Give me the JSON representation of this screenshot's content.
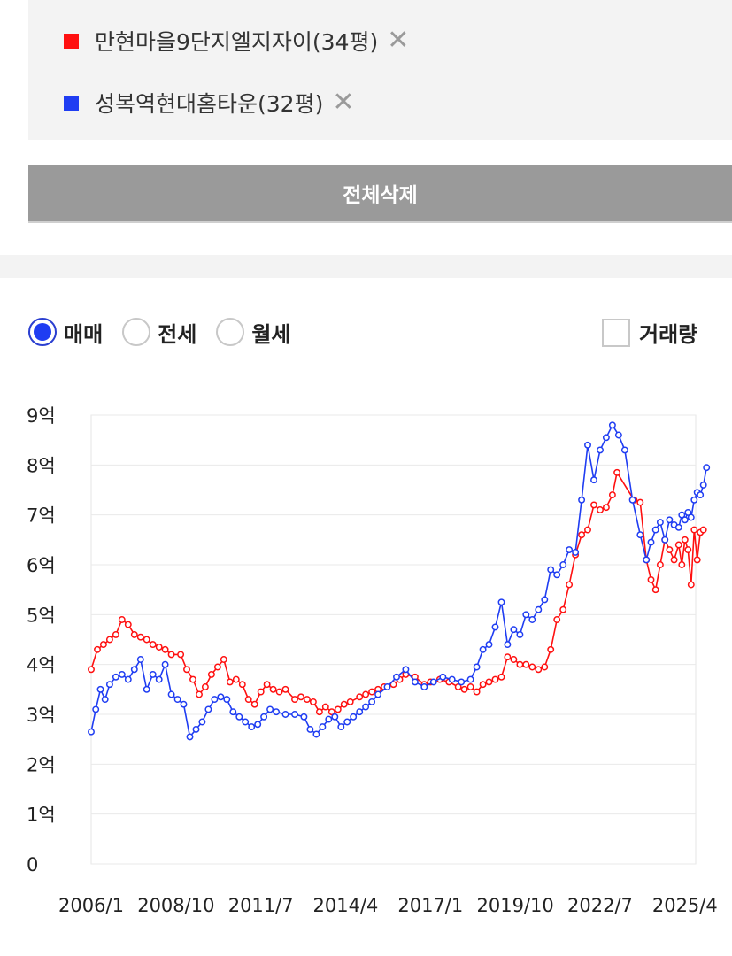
{
  "compare": {
    "items": [
      {
        "label": "만현마을9단지엘지자이(34평)",
        "color": "#ff1010",
        "close_icon": "close-icon"
      },
      {
        "label": "성복역현대홈타운(32평)",
        "color": "#1f3df2",
        "close_icon": "close-icon"
      }
    ],
    "clear_all_label": "전체삭제"
  },
  "filters": {
    "options": [
      {
        "label": "매매",
        "checked": true
      },
      {
        "label": "전세",
        "checked": false
      },
      {
        "label": "월세",
        "checked": false
      }
    ],
    "volume_label": "거래량",
    "volume_checked": false
  },
  "chart_data": {
    "type": "line",
    "x_unit": "year",
    "xlim": [
      2006.0,
      2025.6
    ],
    "ylim": [
      0,
      9
    ],
    "y_tick_values": [
      0,
      1,
      2,
      3,
      4,
      5,
      6,
      7,
      8,
      9
    ],
    "y_tick_labels": [
      "0",
      "1억",
      "2억",
      "3억",
      "4억",
      "5억",
      "6억",
      "7억",
      "8억",
      "9억"
    ],
    "x_tick_values": [
      2006.0,
      2008.75,
      2011.5,
      2014.25,
      2017.0,
      2019.75,
      2022.5,
      2025.25
    ],
    "x_tick_labels": [
      "2006/1",
      "2008/10",
      "2011/7",
      "2014/4",
      "2017/1",
      "2019/10",
      "2022/7",
      "2025/4"
    ],
    "grid": true,
    "series": [
      {
        "name": "만현마을9단지엘지자이(34평)",
        "color": "#ff1010",
        "points": [
          [
            2006.0,
            3.9
          ],
          [
            2006.2,
            4.3
          ],
          [
            2006.4,
            4.4
          ],
          [
            2006.6,
            4.5
          ],
          [
            2006.8,
            4.6
          ],
          [
            2007.0,
            4.9
          ],
          [
            2007.2,
            4.8
          ],
          [
            2007.4,
            4.6
          ],
          [
            2007.6,
            4.55
          ],
          [
            2007.8,
            4.5
          ],
          [
            2008.0,
            4.4
          ],
          [
            2008.2,
            4.35
          ],
          [
            2008.4,
            4.3
          ],
          [
            2008.6,
            4.2
          ],
          [
            2008.9,
            4.2
          ],
          [
            2009.1,
            3.9
          ],
          [
            2009.3,
            3.7
          ],
          [
            2009.5,
            3.4
          ],
          [
            2009.7,
            3.55
          ],
          [
            2009.9,
            3.8
          ],
          [
            2010.1,
            3.95
          ],
          [
            2010.3,
            4.1
          ],
          [
            2010.5,
            3.65
          ],
          [
            2010.7,
            3.7
          ],
          [
            2010.9,
            3.6
          ],
          [
            2011.1,
            3.3
          ],
          [
            2011.3,
            3.2
          ],
          [
            2011.5,
            3.45
          ],
          [
            2011.7,
            3.6
          ],
          [
            2011.9,
            3.5
          ],
          [
            2012.1,
            3.45
          ],
          [
            2012.3,
            3.5
          ],
          [
            2012.6,
            3.3
          ],
          [
            2012.8,
            3.35
          ],
          [
            2013.0,
            3.3
          ],
          [
            2013.2,
            3.25
          ],
          [
            2013.4,
            3.05
          ],
          [
            2013.6,
            3.15
          ],
          [
            2013.8,
            3.05
          ],
          [
            2014.0,
            3.1
          ],
          [
            2014.2,
            3.2
          ],
          [
            2014.4,
            3.25
          ],
          [
            2014.7,
            3.35
          ],
          [
            2014.9,
            3.4
          ],
          [
            2015.1,
            3.45
          ],
          [
            2015.3,
            3.5
          ],
          [
            2015.5,
            3.55
          ],
          [
            2015.8,
            3.6
          ],
          [
            2016.0,
            3.7
          ],
          [
            2016.2,
            3.8
          ],
          [
            2016.5,
            3.75
          ],
          [
            2016.8,
            3.6
          ],
          [
            2017.0,
            3.65
          ],
          [
            2017.3,
            3.7
          ],
          [
            2017.6,
            3.65
          ],
          [
            2017.9,
            3.55
          ],
          [
            2018.1,
            3.5
          ],
          [
            2018.3,
            3.55
          ],
          [
            2018.5,
            3.45
          ],
          [
            2018.7,
            3.6
          ],
          [
            2018.9,
            3.65
          ],
          [
            2019.1,
            3.7
          ],
          [
            2019.3,
            3.75
          ],
          [
            2019.5,
            4.15
          ],
          [
            2019.7,
            4.1
          ],
          [
            2019.9,
            4.0
          ],
          [
            2020.1,
            4.0
          ],
          [
            2020.3,
            3.95
          ],
          [
            2020.5,
            3.9
          ],
          [
            2020.7,
            3.95
          ],
          [
            2020.9,
            4.3
          ],
          [
            2021.1,
            4.9
          ],
          [
            2021.3,
            5.1
          ],
          [
            2021.5,
            5.6
          ],
          [
            2021.7,
            6.2
          ],
          [
            2021.9,
            6.6
          ],
          [
            2022.1,
            6.7
          ],
          [
            2022.3,
            7.2
          ],
          [
            2022.5,
            7.1
          ],
          [
            2022.7,
            7.15
          ],
          [
            2022.9,
            7.4
          ],
          [
            2023.05,
            7.85
          ],
          [
            2023.6,
            7.3
          ],
          [
            2023.8,
            7.25
          ],
          [
            2024.0,
            6.1
          ],
          [
            2024.15,
            5.7
          ],
          [
            2024.3,
            5.5
          ],
          [
            2024.45,
            6.0
          ],
          [
            2024.6,
            6.5
          ],
          [
            2024.75,
            6.3
          ],
          [
            2024.9,
            6.1
          ],
          [
            2025.05,
            6.4
          ],
          [
            2025.15,
            6.0
          ],
          [
            2025.25,
            6.5
          ],
          [
            2025.35,
            6.3
          ],
          [
            2025.45,
            5.6
          ],
          [
            2025.55,
            6.7
          ],
          [
            2025.65,
            6.1
          ],
          [
            2025.75,
            6.65
          ],
          [
            2025.85,
            6.7
          ]
        ]
      },
      {
        "name": "성복역현대홈타운(32평)",
        "color": "#1f3df2",
        "points": [
          [
            2006.0,
            2.65
          ],
          [
            2006.15,
            3.1
          ],
          [
            2006.3,
            3.5
          ],
          [
            2006.45,
            3.3
          ],
          [
            2006.6,
            3.6
          ],
          [
            2006.8,
            3.75
          ],
          [
            2007.0,
            3.8
          ],
          [
            2007.2,
            3.7
          ],
          [
            2007.4,
            3.9
          ],
          [
            2007.6,
            4.1
          ],
          [
            2007.8,
            3.5
          ],
          [
            2008.0,
            3.8
          ],
          [
            2008.2,
            3.7
          ],
          [
            2008.4,
            4.0
          ],
          [
            2008.6,
            3.4
          ],
          [
            2008.8,
            3.3
          ],
          [
            2009.0,
            3.2
          ],
          [
            2009.2,
            2.55
          ],
          [
            2009.4,
            2.7
          ],
          [
            2009.6,
            2.85
          ],
          [
            2009.8,
            3.1
          ],
          [
            2010.0,
            3.3
          ],
          [
            2010.2,
            3.35
          ],
          [
            2010.4,
            3.3
          ],
          [
            2010.6,
            3.05
          ],
          [
            2010.8,
            2.95
          ],
          [
            2011.0,
            2.85
          ],
          [
            2011.2,
            2.75
          ],
          [
            2011.4,
            2.8
          ],
          [
            2011.6,
            2.95
          ],
          [
            2011.8,
            3.1
          ],
          [
            2012.0,
            3.05
          ],
          [
            2012.3,
            3.0
          ],
          [
            2012.6,
            3.0
          ],
          [
            2012.9,
            2.95
          ],
          [
            2013.1,
            2.7
          ],
          [
            2013.3,
            2.6
          ],
          [
            2013.5,
            2.75
          ],
          [
            2013.7,
            2.9
          ],
          [
            2013.9,
            2.95
          ],
          [
            2014.1,
            2.75
          ],
          [
            2014.3,
            2.85
          ],
          [
            2014.5,
            2.95
          ],
          [
            2014.7,
            3.05
          ],
          [
            2014.9,
            3.15
          ],
          [
            2015.1,
            3.25
          ],
          [
            2015.3,
            3.4
          ],
          [
            2015.6,
            3.55
          ],
          [
            2015.9,
            3.75
          ],
          [
            2016.2,
            3.9
          ],
          [
            2016.5,
            3.65
          ],
          [
            2016.8,
            3.55
          ],
          [
            2017.1,
            3.65
          ],
          [
            2017.4,
            3.75
          ],
          [
            2017.7,
            3.7
          ],
          [
            2018.0,
            3.65
          ],
          [
            2018.3,
            3.7
          ],
          [
            2018.5,
            3.95
          ],
          [
            2018.7,
            4.3
          ],
          [
            2018.9,
            4.4
          ],
          [
            2019.1,
            4.75
          ],
          [
            2019.3,
            5.25
          ],
          [
            2019.5,
            4.4
          ],
          [
            2019.7,
            4.7
          ],
          [
            2019.9,
            4.6
          ],
          [
            2020.1,
            5.0
          ],
          [
            2020.3,
            4.9
          ],
          [
            2020.5,
            5.1
          ],
          [
            2020.7,
            5.3
          ],
          [
            2020.9,
            5.9
          ],
          [
            2021.1,
            5.8
          ],
          [
            2021.3,
            6.0
          ],
          [
            2021.5,
            6.3
          ],
          [
            2021.7,
            6.25
          ],
          [
            2021.9,
            7.3
          ],
          [
            2022.1,
            8.4
          ],
          [
            2022.3,
            7.7
          ],
          [
            2022.5,
            8.3
          ],
          [
            2022.7,
            8.55
          ],
          [
            2022.9,
            8.8
          ],
          [
            2023.1,
            8.6
          ],
          [
            2023.3,
            8.3
          ],
          [
            2023.55,
            7.3
          ],
          [
            2023.8,
            6.6
          ],
          [
            2024.0,
            6.1
          ],
          [
            2024.15,
            6.45
          ],
          [
            2024.3,
            6.7
          ],
          [
            2024.45,
            6.85
          ],
          [
            2024.6,
            6.5
          ],
          [
            2024.75,
            6.9
          ],
          [
            2024.9,
            6.8
          ],
          [
            2025.05,
            6.75
          ],
          [
            2025.15,
            7.0
          ],
          [
            2025.25,
            6.9
          ],
          [
            2025.35,
            7.05
          ],
          [
            2025.45,
            6.95
          ],
          [
            2025.55,
            7.3
          ],
          [
            2025.65,
            7.45
          ],
          [
            2025.75,
            7.4
          ],
          [
            2025.85,
            7.6
          ],
          [
            2025.95,
            7.95
          ]
        ]
      }
    ]
  }
}
